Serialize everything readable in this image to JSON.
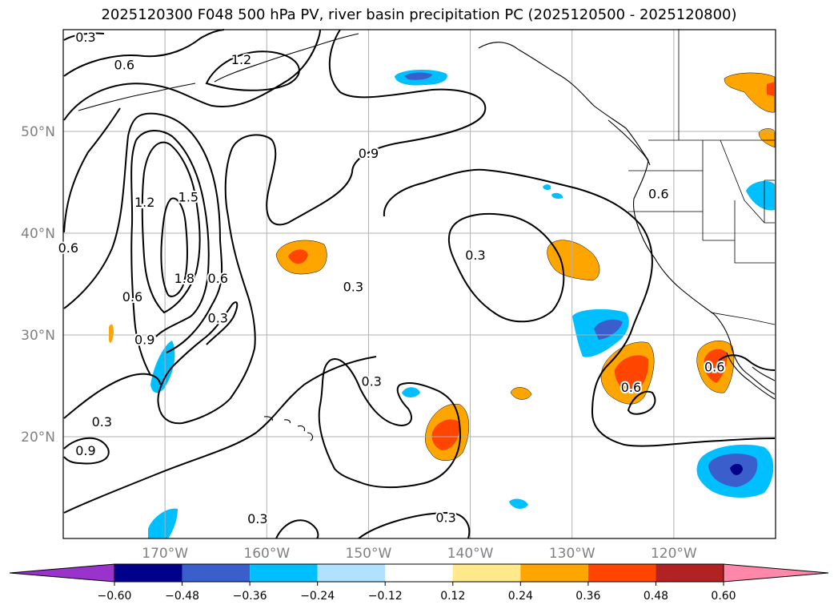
{
  "title": "2025120300 F048 500 hPa PV, river basin precipitation PC (2025120500 - 2025120800)",
  "map": {
    "projection": "cylindrical",
    "lon_range": [
      -180,
      -110
    ],
    "lat_range": [
      10,
      60
    ],
    "lon_gridlines": [
      -170,
      -160,
      -150,
      -140,
      -130,
      -120
    ],
    "lat_gridlines": [
      20,
      30,
      40,
      50
    ],
    "lon_labels": [
      "170°W",
      "160°W",
      "150°W",
      "140°W",
      "130°W",
      "120°W"
    ],
    "lat_labels": [
      "20°N",
      "30°N",
      "40°N",
      "50°N"
    ],
    "grid": true
  },
  "pv_contour_labels": [
    {
      "text": "0.3",
      "lon": -177.8,
      "lat": 59.2
    },
    {
      "text": "0.6",
      "lon": -174.0,
      "lat": 56.5
    },
    {
      "text": "1.2",
      "lon": -162.5,
      "lat": 57.0
    },
    {
      "text": "0.9",
      "lon": -150.0,
      "lat": 47.8
    },
    {
      "text": "0.6",
      "lon": -121.5,
      "lat": 43.8
    },
    {
      "text": "1.2",
      "lon": -172.0,
      "lat": 43.0
    },
    {
      "text": "1.5",
      "lon": -167.7,
      "lat": 43.5
    },
    {
      "text": "0.6",
      "lon": -179.5,
      "lat": 38.5
    },
    {
      "text": "1.8",
      "lon": -168.1,
      "lat": 35.5
    },
    {
      "text": "0.6",
      "lon": -173.2,
      "lat": 33.7
    },
    {
      "text": "0.6",
      "lon": -164.8,
      "lat": 35.5
    },
    {
      "text": "0.3",
      "lon": -164.8,
      "lat": 31.6
    },
    {
      "text": "0.9",
      "lon": -172.0,
      "lat": 29.5
    },
    {
      "text": "0.3",
      "lon": -151.5,
      "lat": 34.7
    },
    {
      "text": "0.3",
      "lon": -139.5,
      "lat": 37.8
    },
    {
      "text": "0.3",
      "lon": -176.2,
      "lat": 21.4
    },
    {
      "text": "0.9",
      "lon": -177.8,
      "lat": 18.6
    },
    {
      "text": "0.3",
      "lon": -149.7,
      "lat": 25.4
    },
    {
      "text": "0.6",
      "lon": -124.2,
      "lat": 24.8
    },
    {
      "text": "0.6",
      "lon": -116.0,
      "lat": 26.8
    },
    {
      "text": "0.3",
      "lon": -160.9,
      "lat": 11.9
    },
    {
      "text": "0.3",
      "lon": -142.4,
      "lat": 12.0
    }
  ],
  "colorbar": {
    "levels": [
      -0.6,
      -0.48,
      -0.36,
      -0.24,
      -0.12,
      0.12,
      0.24,
      0.36,
      0.48,
      0.6
    ],
    "tick_labels": [
      "−0.60",
      "−0.48",
      "−0.36",
      "−0.24",
      "−0.12",
      "0.12",
      "0.24",
      "0.36",
      "0.48",
      "0.60"
    ],
    "colors": [
      "#9933cc",
      "#00008b",
      "#3a5fcd",
      "#00bfff",
      "#b0e2ff",
      "#ffffff",
      "#ffe98a",
      "#ffa500",
      "#ff4500",
      "#b22222",
      "#ff88aa"
    ],
    "extend": "both"
  },
  "colors": {
    "gridline": "#b0b0b0",
    "axis_label": "#808080",
    "contour": "#000000",
    "coast": "#000000"
  }
}
